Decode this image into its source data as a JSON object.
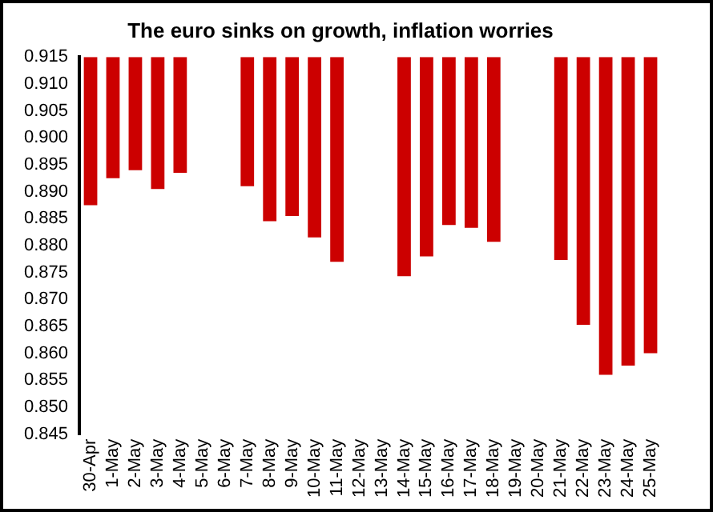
{
  "chart_data": {
    "type": "bar",
    "title": "The euro sinks on growth, inflation worries",
    "categories": [
      "30-Apr",
      "1-May",
      "2-May",
      "3-May",
      "4-May",
      "5-May",
      "6-May",
      "7-May",
      "8-May",
      "9-May",
      "10-May",
      "11-May",
      "12-May",
      "13-May",
      "14-May",
      "15-May",
      "16-May",
      "17-May",
      "18-May",
      "19-May",
      "20-May",
      "21-May",
      "22-May",
      "23-May",
      "24-May",
      "25-May"
    ],
    "values": [
      -0.0275,
      -0.0225,
      -0.021,
      -0.0245,
      -0.0215,
      null,
      null,
      -0.024,
      -0.0305,
      -0.0295,
      -0.0335,
      -0.038,
      null,
      null,
      -0.0407,
      -0.037,
      -0.0312,
      -0.0317,
      -0.0343,
      null,
      null,
      -0.0377,
      -0.0497,
      -0.059,
      -0.0573,
      -0.055
    ],
    "base": [
      0.915,
      0.915,
      0.915,
      0.915,
      0.915,
      null,
      null,
      0.915,
      0.915,
      0.915,
      0.915,
      0.915,
      null,
      null,
      0.915,
      0.915,
      0.915,
      0.915,
      0.915,
      null,
      null,
      0.915,
      0.915,
      0.915,
      0.915,
      0.915
    ],
    "color": "#cc0000",
    "ylim": [
      0.845,
      0.915
    ],
    "yticks": [
      {
        "value": 0.845,
        "label": "0.845"
      },
      {
        "value": 0.85,
        "label": "0.850"
      },
      {
        "value": 0.855,
        "label": "0.855"
      },
      {
        "value": 0.86,
        "label": "0.860"
      },
      {
        "value": 0.865,
        "label": "0.865"
      },
      {
        "value": 0.87,
        "label": "0.870"
      },
      {
        "value": 0.875,
        "label": "0.875"
      },
      {
        "value": 0.88,
        "label": "0.880"
      },
      {
        "value": 0.885,
        "label": "0.885"
      },
      {
        "value": 0.89,
        "label": "0.890"
      },
      {
        "value": 0.895,
        "label": "0.895"
      },
      {
        "value": 0.9,
        "label": "0.900"
      },
      {
        "value": 0.905,
        "label": "0.905"
      },
      {
        "value": 0.91,
        "label": "0.910"
      },
      {
        "value": 0.915,
        "label": "0.915"
      }
    ],
    "grid": false,
    "legend": false
  }
}
